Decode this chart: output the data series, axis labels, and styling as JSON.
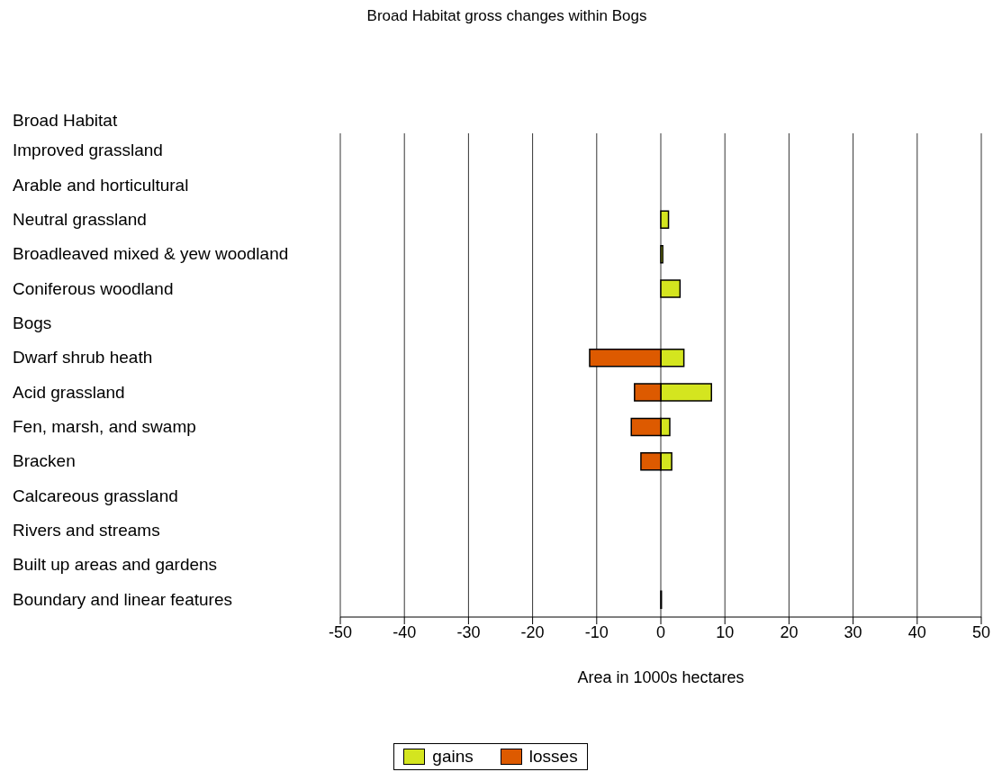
{
  "chart_data": {
    "type": "bar",
    "orientation": "horizontal",
    "stacked": true,
    "title": "Broad Habitat gross changes within Bogs",
    "ylabel": "Broad Habitat",
    "xlabel": "Area in 1000s hectares",
    "categories": [
      "Improved grassland",
      "Arable and horticultural",
      "Neutral grassland",
      "Broadleaved mixed & yew woodland",
      "Coniferous woodland",
      "Bogs",
      "Dwarf shrub heath",
      "Acid grassland",
      "Fen, marsh, and swamp",
      "Bracken",
      "Calcareous grassland",
      "Rivers and streams",
      "Built up areas and gardens",
      "Boundary and linear features"
    ],
    "series": [
      {
        "name": "gains",
        "color": "#d4e51f",
        "values": [
          null,
          null,
          1.2,
          0.3,
          3.0,
          null,
          3.6,
          7.9,
          1.4,
          1.7,
          null,
          null,
          null,
          0.1
        ]
      },
      {
        "name": "losses",
        "color": "#dd5a00",
        "values": [
          null,
          null,
          null,
          null,
          null,
          null,
          -11.1,
          -4.1,
          -4.6,
          -3.1,
          null,
          null,
          null,
          null
        ]
      }
    ],
    "xlim": [
      -50,
      50
    ],
    "xticks": [
      -50,
      -40,
      -30,
      -20,
      -10,
      0,
      10,
      20,
      30,
      40,
      50
    ],
    "grid": "x",
    "legend": "bottom"
  }
}
